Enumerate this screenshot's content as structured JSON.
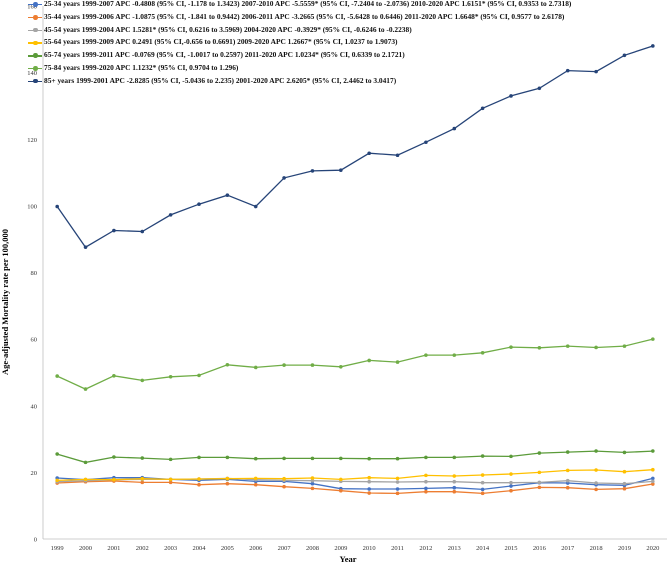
{
  "chart_data": {
    "type": "line",
    "xlabel": "Year",
    "ylabel": "Age-adjusted Mortality rate per 100,000",
    "ylim": [
      0,
      160
    ],
    "yticks": [
      "0",
      "20",
      "40",
      "60",
      "80",
      "100",
      "120",
      "140",
      "160"
    ],
    "x": [
      "1999",
      "2000",
      "2001",
      "2002",
      "2003",
      "2004",
      "2005",
      "2006",
      "2007",
      "2008",
      "2009",
      "2010",
      "2011",
      "2012",
      "2013",
      "2014",
      "2015",
      "2016",
      "2017",
      "2018",
      "2019",
      "2020"
    ],
    "grid": false,
    "legend_position": "top-left",
    "series": [
      {
        "name": "25-34 years 1999-2007 APC -0.4808 (95% CI, -1.178 to 1.3423) 2007-2010 APC -5.5559* (95% CI, -7.2404 to -2.0736) 2010-2020 APC 1.6151* (95% CI, 0.9353 to 2.7318)",
        "color": "#4472c4",
        "values": [
          18.3,
          17.8,
          18.4,
          18.4,
          17.9,
          17.6,
          17.9,
          17.3,
          17.3,
          16.6,
          15.1,
          15.0,
          15.0,
          15.2,
          15.4,
          14.9,
          15.9,
          16.9,
          16.8,
          16.3,
          16.1,
          18.2
        ]
      },
      {
        "name": "35-44 years 1999-2006 APC -1.0875 (95% CI, -1.841 to 0.9442) 2006-2011 APC -3.2665 (95% CI, -5.6428 to 0.6446) 2011-2020 APC 1.6648* (95% CI, 0.9577 to 2.6178)",
        "color": "#ed7d31",
        "values": [
          16.8,
          17.2,
          17.4,
          17.0,
          17.0,
          16.3,
          16.6,
          16.3,
          15.7,
          15.2,
          14.5,
          13.8,
          13.7,
          14.2,
          14.2,
          13.7,
          14.5,
          15.5,
          15.4,
          14.9,
          15.1,
          16.5
        ]
      },
      {
        "name": "45-54 years 1999-2004 APC 1.5281* (95% CI, 0.6216 to 3.5969) 2004-2020 APC -0.3929* (95% CI, -0.6246 to -0.2238)",
        "color": "#a5a5a5",
        "values": [
          17.2,
          17.5,
          17.8,
          17.9,
          17.9,
          18.0,
          18.2,
          17.8,
          17.6,
          17.5,
          17.3,
          17.2,
          17.1,
          17.2,
          17.2,
          16.9,
          16.9,
          17.0,
          17.5,
          16.8,
          16.6,
          17.3
        ]
      },
      {
        "name": "55-64 years 1999-2009 APC 0.2491 (95% CI,-0.656 to 0.6691) 2009-2020 APC 1.2667* (95% CI, 1.0237 to 1.9073)",
        "color": "#ffc000",
        "values": [
          17.6,
          17.9,
          17.8,
          18.1,
          17.9,
          18.0,
          18.1,
          18.2,
          18.1,
          18.3,
          17.9,
          18.4,
          18.2,
          19.1,
          18.9,
          19.2,
          19.5,
          20.0,
          20.6,
          20.7,
          20.2,
          20.8
        ]
      },
      {
        "name": "65-74 years 1999-2011 APC -0.0769 (95% CI, -1.0017 to 0.2597) 2011-2020 APC 1.0234* (95% CI, 0.6339 to 2.1721)",
        "color": "#5b9b3a",
        "values": [
          25.5,
          23.0,
          24.6,
          24.3,
          23.9,
          24.5,
          24.5,
          24.1,
          24.2,
          24.2,
          24.2,
          24.1,
          24.1,
          24.5,
          24.5,
          24.9,
          24.8,
          25.8,
          26.1,
          26.4,
          26.0,
          26.4
        ]
      },
      {
        "name": "75-84 years 1999-2020 APC 1.1232* (95% CI, 0.9704 to 1.296)",
        "color": "#70ad47",
        "values": [
          48.9,
          45.0,
          49.0,
          47.6,
          48.7,
          49.1,
          52.3,
          51.5,
          52.2,
          52.2,
          51.7,
          53.6,
          53.1,
          55.2,
          55.2,
          55.9,
          57.6,
          57.4,
          57.9,
          57.5,
          57.9,
          60.0
        ]
      },
      {
        "name": "85+ years 1999-2001 APC -2.8285 (95% CI, -5.0436 to 2.235) 2001-2020 APC 2.6205* (95% CI, 2.4462 to 3.0417)",
        "color": "#264478",
        "values": [
          99.8,
          87.6,
          92.6,
          92.3,
          97.3,
          100.5,
          103.2,
          99.8,
          108.4,
          110.5,
          110.7,
          115.8,
          115.2,
          119.1,
          123.2,
          129.3,
          133.0,
          135.3,
          140.6,
          140.3,
          145.2,
          148.0
        ]
      }
    ]
  }
}
